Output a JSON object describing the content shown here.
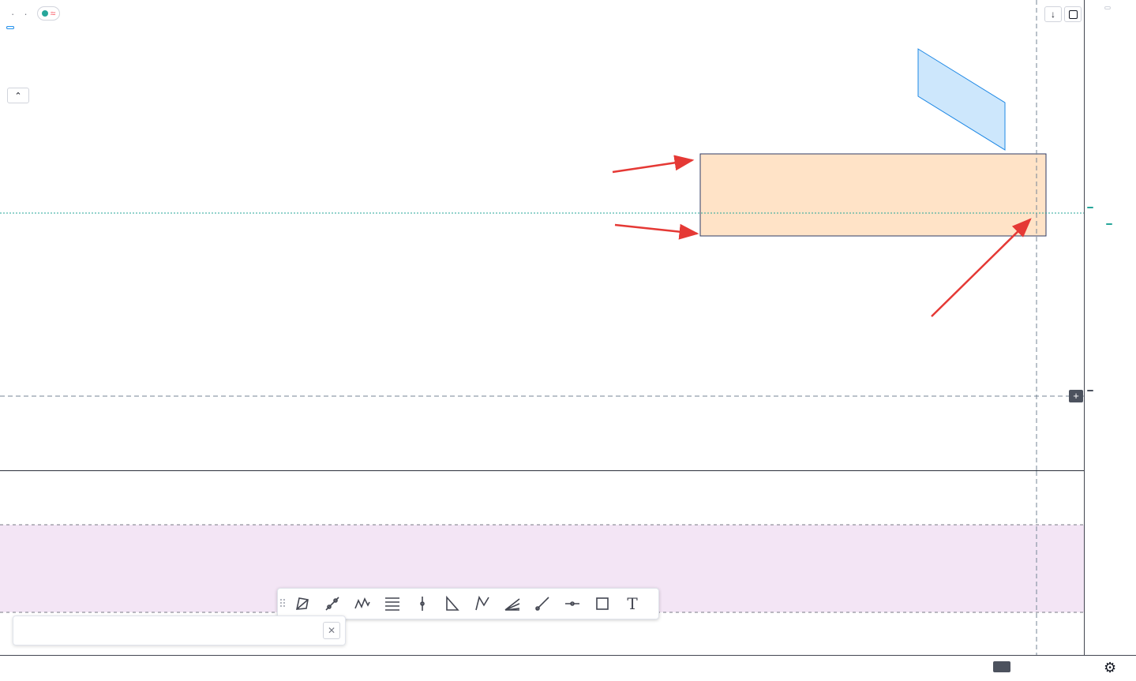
{
  "header": {
    "symbol": "",
    "interval": "",
    "exchange": "",
    "ohlc": ""
  },
  "quotes": {
    "bid": "",
    "spread": "",
    "ask": ""
  },
  "indicators": {
    "ema21": {
      "label": "",
      "value": "",
      "color": "#2196f3"
    },
    "ema8": {
      "label": "",
      "value": "",
      "color": "#f57c00"
    },
    "rsi": {
      "label": "",
      "value": "",
      "color": "#9c27b0"
    }
  },
  "annotations": {
    "a_1248": "",
    "a_1975": "",
    "a_1243": "",
    "a_1909": "",
    "a_1929_line1": "",
    "a_1929_line2": "",
    "a_1250": ""
  },
  "axis": {
    "currency": "",
    "last_price": "",
    "countdown": "",
    "crosshair_price": "",
    "crosshair_date": "",
    "crosshair_time": "",
    "price_ticks": [],
    "rsi_ticks": [],
    "time_ticks": []
  },
  "colors": {
    "up": "#26a69a",
    "down": "#ef5350",
    "annotation": "#e53935"
  }
}
